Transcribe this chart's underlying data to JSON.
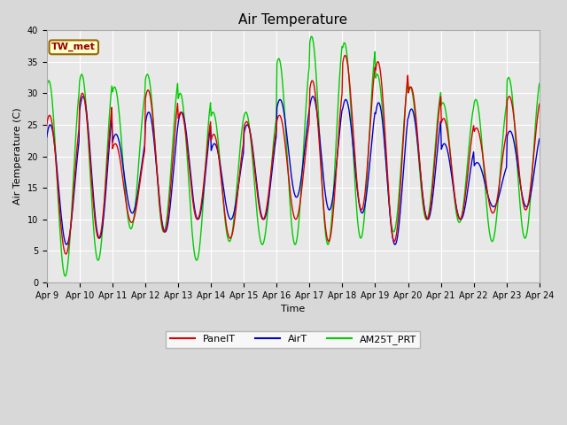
{
  "title": "Air Temperature",
  "ylabel": "Air Temperature (C)",
  "xlabel": "Time",
  "ylim": [
    0,
    40
  ],
  "fig_facecolor": "#d8d8d8",
  "plot_facecolor": "#e8e8e8",
  "legend_label": "TW_met",
  "series_labels": [
    "PanelT",
    "AirT",
    "AM25T_PRT"
  ],
  "series_colors": [
    "#dd0000",
    "#0000cc",
    "#00cc00"
  ],
  "xtick_labels": [
    "Apr 9",
    "Apr 10",
    "Apr 11",
    "Apr 12",
    "Apr 13",
    "Apr 14",
    "Apr 15",
    "Apr 16",
    "Apr 17",
    "Apr 18",
    "Apr 19",
    "Apr 20",
    "Apr 21",
    "Apr 22",
    "Apr 23",
    "Apr 24"
  ],
  "num_days": 15,
  "daily_max_panel": [
    26.5,
    30.0,
    22.0,
    30.5,
    27.0,
    23.5,
    25.5,
    26.5,
    32.0,
    36.0,
    35.0,
    31.0,
    26.0,
    24.5,
    29.5
  ],
  "daily_min_panel": [
    4.5,
    7.0,
    9.5,
    8.0,
    10.0,
    7.0,
    10.0,
    10.0,
    6.5,
    11.5,
    6.5,
    10.0,
    10.0,
    11.0,
    11.5
  ],
  "daily_max_air": [
    25.0,
    29.5,
    23.5,
    27.0,
    27.0,
    22.0,
    25.0,
    29.0,
    29.5,
    29.0,
    28.5,
    27.5,
    22.0,
    19.0,
    24.0
  ],
  "daily_min_air": [
    6.0,
    7.0,
    11.0,
    8.0,
    10.0,
    10.0,
    10.0,
    13.5,
    11.5,
    11.0,
    6.0,
    10.0,
    10.0,
    12.0,
    12.0
  ],
  "daily_max_am25t": [
    32.0,
    33.0,
    31.0,
    33.0,
    30.0,
    27.0,
    27.0,
    35.5,
    39.0,
    38.0,
    33.0,
    31.0,
    28.5,
    29.0,
    32.5
  ],
  "daily_min_am25t": [
    1.0,
    3.5,
    8.5,
    8.0,
    3.5,
    6.5,
    6.0,
    6.0,
    6.0,
    7.0,
    8.0,
    10.0,
    9.5,
    6.5,
    7.0
  ],
  "annotation_box_color": "#ffffcc",
  "annotation_border_color": "#996600",
  "annotation_text_color": "#990000",
  "title_fontsize": 11,
  "tick_fontsize": 7,
  "label_fontsize": 8,
  "legend_fontsize": 8,
  "grid_color": "#ffffff",
  "grid_linewidth": 0.8,
  "line_width": 1.0,
  "samples_per_day": 48
}
